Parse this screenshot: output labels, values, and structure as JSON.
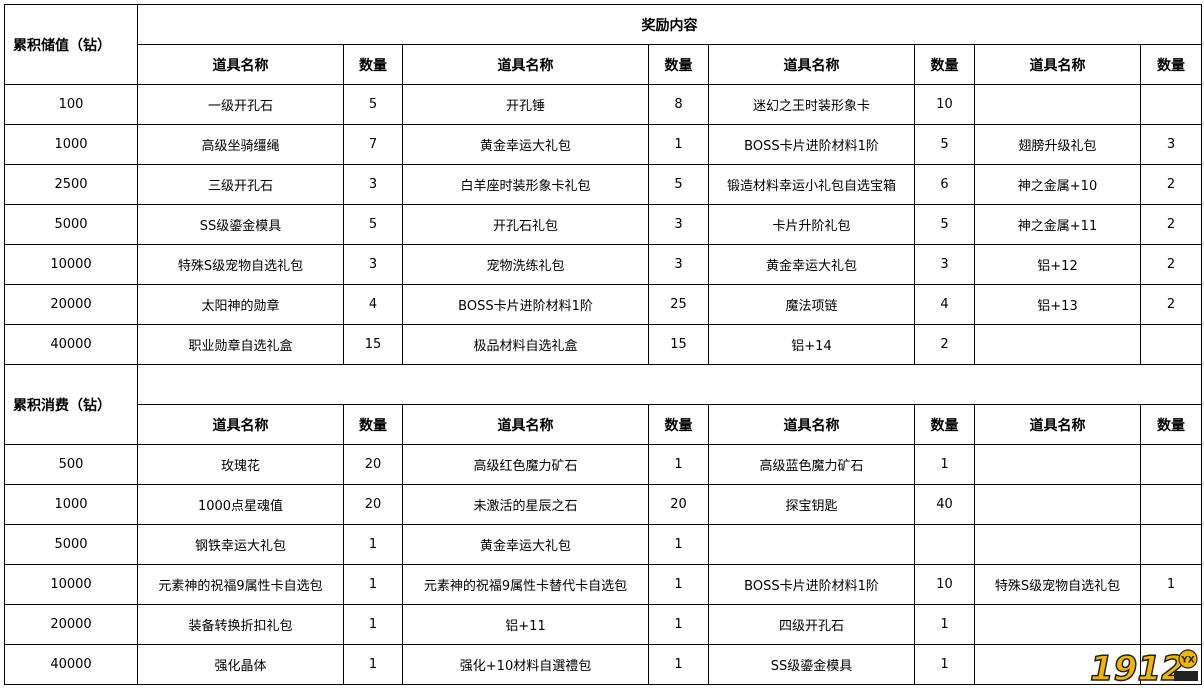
{
  "reward_title": "奖励内容",
  "header": {
    "item_name": "道具名称",
    "quantity": "数量"
  },
  "sections": [
    {
      "label": "累积储值（钻）",
      "rows": [
        {
          "threshold": "100",
          "items": [
            [
              "一级开孔石",
              "5"
            ],
            [
              "开孔锤",
              "8"
            ],
            [
              "迷幻之王时装形象卡",
              "10"
            ],
            [
              "",
              ""
            ]
          ]
        },
        {
          "threshold": "1000",
          "items": [
            [
              "高级坐骑缰绳",
              "7"
            ],
            [
              "黄金幸运大礼包",
              "1"
            ],
            [
              "BOSS卡片进阶材料1阶",
              "5"
            ],
            [
              "翅膀升级礼包",
              "3"
            ]
          ]
        },
        {
          "threshold": "2500",
          "items": [
            [
              "三级开孔石",
              "3"
            ],
            [
              "白羊座时装形象卡礼包",
              "5"
            ],
            [
              "锻造材料幸运小礼包自选宝箱",
              "6"
            ],
            [
              "神之金属+10",
              "2"
            ]
          ]
        },
        {
          "threshold": "5000",
          "items": [
            [
              "SS级鎏金模具",
              "5"
            ],
            [
              "开孔石礼包",
              "3"
            ],
            [
              "卡片升阶礼包",
              "5"
            ],
            [
              "神之金属+11",
              "2"
            ]
          ]
        },
        {
          "threshold": "10000",
          "items": [
            [
              "特殊S级宠物自选礼包",
              "3"
            ],
            [
              "宠物洗练礼包",
              "3"
            ],
            [
              "黄金幸运大礼包",
              "3"
            ],
            [
              "铝+12",
              "2"
            ]
          ]
        },
        {
          "threshold": "20000",
          "items": [
            [
              "太阳神的勋章",
              "4"
            ],
            [
              "BOSS卡片进阶材料1阶",
              "25"
            ],
            [
              "魔法项链",
              "4"
            ],
            [
              "铝+13",
              "2"
            ]
          ]
        },
        {
          "threshold": "40000",
          "items": [
            [
              "职业勋章自选礼盒",
              "15"
            ],
            [
              "极品材料自选礼盒",
              "15"
            ],
            [
              "铝+14",
              "2"
            ],
            [
              "",
              ""
            ]
          ]
        }
      ]
    },
    {
      "label": "累积消费（钻）",
      "rows": [
        {
          "threshold": "500",
          "items": [
            [
              "玫瑰花",
              "20"
            ],
            [
              "高级红色魔力矿石",
              "1"
            ],
            [
              "高级蓝色魔力矿石",
              "1"
            ],
            [
              "",
              ""
            ]
          ]
        },
        {
          "threshold": "1000",
          "items": [
            [
              "1000点星魂值",
              "20"
            ],
            [
              "未激活的星辰之石",
              "20"
            ],
            [
              "探宝钥匙",
              "40"
            ],
            [
              "",
              ""
            ]
          ]
        },
        {
          "threshold": "5000",
          "items": [
            [
              "钢铁幸运大礼包",
              "1"
            ],
            [
              "黄金幸运大礼包",
              "1"
            ],
            [
              "",
              ""
            ],
            [
              "",
              ""
            ]
          ]
        },
        {
          "threshold": "10000",
          "items": [
            [
              "元素神的祝福9属性卡自选包",
              "1"
            ],
            [
              "元素神的祝福9属性卡替代卡自选包",
              "1"
            ],
            [
              "BOSS卡片进阶材料1阶",
              "10"
            ],
            [
              "特殊S级宠物自选礼包",
              "1"
            ]
          ]
        },
        {
          "threshold": "20000",
          "items": [
            [
              "装备转换折扣礼包",
              "1"
            ],
            [
              "铝+11",
              "1"
            ],
            [
              "四级开孔石",
              "1"
            ],
            [
              "",
              ""
            ]
          ]
        },
        {
          "threshold": "40000",
          "items": [
            [
              "强化晶体",
              "1"
            ],
            [
              "强化+10材料自選禮包",
              "1"
            ],
            [
              "SS级鎏金模具",
              "1"
            ],
            [
              "",
              ""
            ]
          ]
        }
      ]
    }
  ],
  "watermark": "1912YX 网页游戏"
}
